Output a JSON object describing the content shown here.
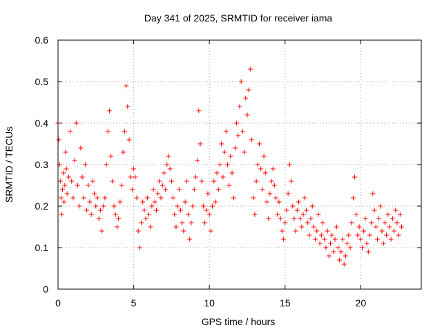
{
  "chart_data": {
    "type": "scatter",
    "title": "Day 341 of 2025, SRMTID for receiver iama",
    "xlabel": "GPS time / hours",
    "ylabel": "SRMTID / TECUs",
    "xlim": [
      0,
      24
    ],
    "ylim": [
      0,
      0.6
    ],
    "x_ticks": [
      "0",
      "5",
      "10",
      "15",
      "20"
    ],
    "x_tick_values": [
      0,
      5,
      10,
      15,
      20
    ],
    "y_ticks": [
      "0",
      "0.1",
      "0.2",
      "0.3",
      "0.4",
      "0.5",
      "0.6"
    ],
    "y_tick_values": [
      0,
      0.1,
      0.2,
      0.3,
      0.4,
      0.5,
      0.6
    ],
    "grid": true,
    "marker": "+",
    "color": "#ff0000",
    "series": [
      {
        "name": "SRMTID",
        "points": [
          [
            0.0,
            0.4
          ],
          [
            0.05,
            0.36
          ],
          [
            0.1,
            0.3
          ],
          [
            0.15,
            0.26
          ],
          [
            0.2,
            0.22
          ],
          [
            0.25,
            0.18
          ],
          [
            0.3,
            0.24
          ],
          [
            0.35,
            0.28
          ],
          [
            0.4,
            0.21
          ],
          [
            0.45,
            0.25
          ],
          [
            0.5,
            0.33
          ],
          [
            0.55,
            0.29
          ],
          [
            0.6,
            0.23
          ],
          [
            0.7,
            0.27
          ],
          [
            0.8,
            0.38
          ],
          [
            0.9,
            0.26
          ],
          [
            1.0,
            0.22
          ],
          [
            1.1,
            0.31
          ],
          [
            1.2,
            0.4
          ],
          [
            1.3,
            0.25
          ],
          [
            1.4,
            0.2
          ],
          [
            1.5,
            0.34
          ],
          [
            1.6,
            0.27
          ],
          [
            1.7,
            0.22
          ],
          [
            1.8,
            0.3
          ],
          [
            1.9,
            0.19
          ],
          [
            2.0,
            0.25
          ],
          [
            2.1,
            0.21
          ],
          [
            2.2,
            0.18
          ],
          [
            2.3,
            0.26
          ],
          [
            2.4,
            0.23
          ],
          [
            2.5,
            0.2
          ],
          [
            2.6,
            0.22
          ],
          [
            2.7,
            0.17
          ],
          [
            2.8,
            0.19
          ],
          [
            2.9,
            0.14
          ],
          [
            3.0,
            0.2
          ],
          [
            3.1,
            0.22
          ],
          [
            3.2,
            0.3
          ],
          [
            3.3,
            0.38
          ],
          [
            3.4,
            0.43
          ],
          [
            3.5,
            0.32
          ],
          [
            3.6,
            0.26
          ],
          [
            3.7,
            0.2
          ],
          [
            3.8,
            0.18
          ],
          [
            3.9,
            0.15
          ],
          [
            4.0,
            0.17
          ],
          [
            4.1,
            0.21
          ],
          [
            4.2,
            0.25
          ],
          [
            4.3,
            0.33
          ],
          [
            4.4,
            0.38
          ],
          [
            4.5,
            0.49
          ],
          [
            4.6,
            0.44
          ],
          [
            4.7,
            0.36
          ],
          [
            4.8,
            0.27
          ],
          [
            4.9,
            0.24
          ],
          [
            5.0,
            0.29
          ],
          [
            5.1,
            0.27
          ],
          [
            5.2,
            0.22
          ],
          [
            5.3,
            0.14
          ],
          [
            5.4,
            0.1
          ],
          [
            5.5,
            0.16
          ],
          [
            5.6,
            0.21
          ],
          [
            5.7,
            0.19
          ],
          [
            5.8,
            0.17
          ],
          [
            5.9,
            0.22
          ],
          [
            6.0,
            0.18
          ],
          [
            6.1,
            0.15
          ],
          [
            6.2,
            0.2
          ],
          [
            6.3,
            0.24
          ],
          [
            6.4,
            0.21
          ],
          [
            6.5,
            0.19
          ],
          [
            6.6,
            0.23
          ],
          [
            6.7,
            0.26
          ],
          [
            6.8,
            0.22
          ],
          [
            6.9,
            0.25
          ],
          [
            7.0,
            0.28
          ],
          [
            7.1,
            0.24
          ],
          [
            7.2,
            0.3
          ],
          [
            7.3,
            0.32
          ],
          [
            7.4,
            0.29
          ],
          [
            7.5,
            0.26
          ],
          [
            7.6,
            0.22
          ],
          [
            7.7,
            0.18
          ],
          [
            7.8,
            0.15
          ],
          [
            7.9,
            0.2
          ],
          [
            8.0,
            0.24
          ],
          [
            8.1,
            0.19
          ],
          [
            8.2,
            0.16
          ],
          [
            8.3,
            0.14
          ],
          [
            8.4,
            0.21
          ],
          [
            8.5,
            0.26
          ],
          [
            8.6,
            0.18
          ],
          [
            8.7,
            0.12
          ],
          [
            8.8,
            0.16
          ],
          [
            8.9,
            0.2
          ],
          [
            9.0,
            0.24
          ],
          [
            9.1,
            0.27
          ],
          [
            9.2,
            0.31
          ],
          [
            9.3,
            0.43
          ],
          [
            9.4,
            0.35
          ],
          [
            9.5,
            0.26
          ],
          [
            9.6,
            0.2
          ],
          [
            9.7,
            0.16
          ],
          [
            9.8,
            0.19
          ],
          [
            9.9,
            0.23
          ],
          [
            10.0,
            0.18
          ],
          [
            10.1,
            0.14
          ],
          [
            10.2,
            0.2
          ],
          [
            10.3,
            0.26
          ],
          [
            10.4,
            0.21
          ],
          [
            10.5,
            0.28
          ],
          [
            10.6,
            0.24
          ],
          [
            10.7,
            0.3
          ],
          [
            10.8,
            0.35
          ],
          [
            10.9,
            0.27
          ],
          [
            11.0,
            0.33
          ],
          [
            11.1,
            0.38
          ],
          [
            11.2,
            0.3
          ],
          [
            11.3,
            0.25
          ],
          [
            11.4,
            0.32
          ],
          [
            11.5,
            0.28
          ],
          [
            11.6,
            0.22
          ],
          [
            11.7,
            0.34
          ],
          [
            11.8,
            0.4
          ],
          [
            11.9,
            0.37
          ],
          [
            12.0,
            0.44
          ],
          [
            12.1,
            0.5
          ],
          [
            12.2,
            0.38
          ],
          [
            12.3,
            0.33
          ],
          [
            12.4,
            0.46
          ],
          [
            12.5,
            0.42
          ],
          [
            12.6,
            0.48
          ],
          [
            12.7,
            0.53
          ],
          [
            12.8,
            0.36
          ],
          [
            12.9,
            0.22
          ],
          [
            13.0,
            0.18
          ],
          [
            13.1,
            0.26
          ],
          [
            13.2,
            0.3
          ],
          [
            13.3,
            0.35
          ],
          [
            13.4,
            0.29
          ],
          [
            13.5,
            0.24
          ],
          [
            13.6,
            0.32
          ],
          [
            13.7,
            0.28
          ],
          [
            13.8,
            0.21
          ],
          [
            13.9,
            0.17
          ],
          [
            14.0,
            0.23
          ],
          [
            14.1,
            0.26
          ],
          [
            14.2,
            0.29
          ],
          [
            14.3,
            0.25
          ],
          [
            14.4,
            0.22
          ],
          [
            14.5,
            0.18
          ],
          [
            14.6,
            0.21
          ],
          [
            14.7,
            0.17
          ],
          [
            14.8,
            0.14
          ],
          [
            14.9,
            0.12
          ],
          [
            15.0,
            0.16
          ],
          [
            15.1,
            0.19
          ],
          [
            15.2,
            0.23
          ],
          [
            15.3,
            0.3
          ],
          [
            15.4,
            0.26
          ],
          [
            15.5,
            0.2
          ],
          [
            15.6,
            0.17
          ],
          [
            15.7,
            0.14
          ],
          [
            15.8,
            0.19
          ],
          [
            15.9,
            0.21
          ],
          [
            16.0,
            0.17
          ],
          [
            16.1,
            0.15
          ],
          [
            16.2,
            0.18
          ],
          [
            16.3,
            0.22
          ],
          [
            16.4,
            0.19
          ],
          [
            16.5,
            0.16
          ],
          [
            16.6,
            0.13
          ],
          [
            16.7,
            0.17
          ],
          [
            16.8,
            0.2
          ],
          [
            16.9,
            0.15
          ],
          [
            17.0,
            0.12
          ],
          [
            17.1,
            0.14
          ],
          [
            17.2,
            0.18
          ],
          [
            17.3,
            0.11
          ],
          [
            17.4,
            0.13
          ],
          [
            17.5,
            0.16
          ],
          [
            17.6,
            0.12
          ],
          [
            17.7,
            0.1
          ],
          [
            17.8,
            0.14
          ],
          [
            17.9,
            0.08
          ],
          [
            18.0,
            0.11
          ],
          [
            18.1,
            0.13
          ],
          [
            18.2,
            0.09
          ],
          [
            18.3,
            0.12
          ],
          [
            18.4,
            0.15
          ],
          [
            18.5,
            0.1
          ],
          [
            18.6,
            0.07
          ],
          [
            18.7,
            0.09
          ],
          [
            18.8,
            0.12
          ],
          [
            18.9,
            0.06
          ],
          [
            19.0,
            0.08
          ],
          [
            19.1,
            0.11
          ],
          [
            19.2,
            0.13
          ],
          [
            19.3,
            0.1
          ],
          [
            19.4,
            0.16
          ],
          [
            19.5,
            0.22
          ],
          [
            19.6,
            0.27
          ],
          [
            19.7,
            0.18
          ],
          [
            19.8,
            0.13
          ],
          [
            19.9,
            0.15
          ],
          [
            20.0,
            0.12
          ],
          [
            20.1,
            0.1
          ],
          [
            20.2,
            0.14
          ],
          [
            20.3,
            0.17
          ],
          [
            20.4,
            0.11
          ],
          [
            20.5,
            0.09
          ],
          [
            20.6,
            0.13
          ],
          [
            20.7,
            0.16
          ],
          [
            20.8,
            0.23
          ],
          [
            20.9,
            0.19
          ],
          [
            21.0,
            0.15
          ],
          [
            21.1,
            0.12
          ],
          [
            21.2,
            0.17
          ],
          [
            21.3,
            0.2
          ],
          [
            21.4,
            0.14
          ],
          [
            21.5,
            0.11
          ],
          [
            21.6,
            0.16
          ],
          [
            21.7,
            0.13
          ],
          [
            21.8,
            0.18
          ],
          [
            21.9,
            0.15
          ],
          [
            22.0,
            0.12
          ],
          [
            22.1,
            0.17
          ],
          [
            22.2,
            0.14
          ],
          [
            22.3,
            0.19
          ],
          [
            22.4,
            0.16
          ],
          [
            22.5,
            0.13
          ],
          [
            22.6,
            0.18
          ],
          [
            22.7,
            0.15
          ]
        ]
      }
    ]
  }
}
